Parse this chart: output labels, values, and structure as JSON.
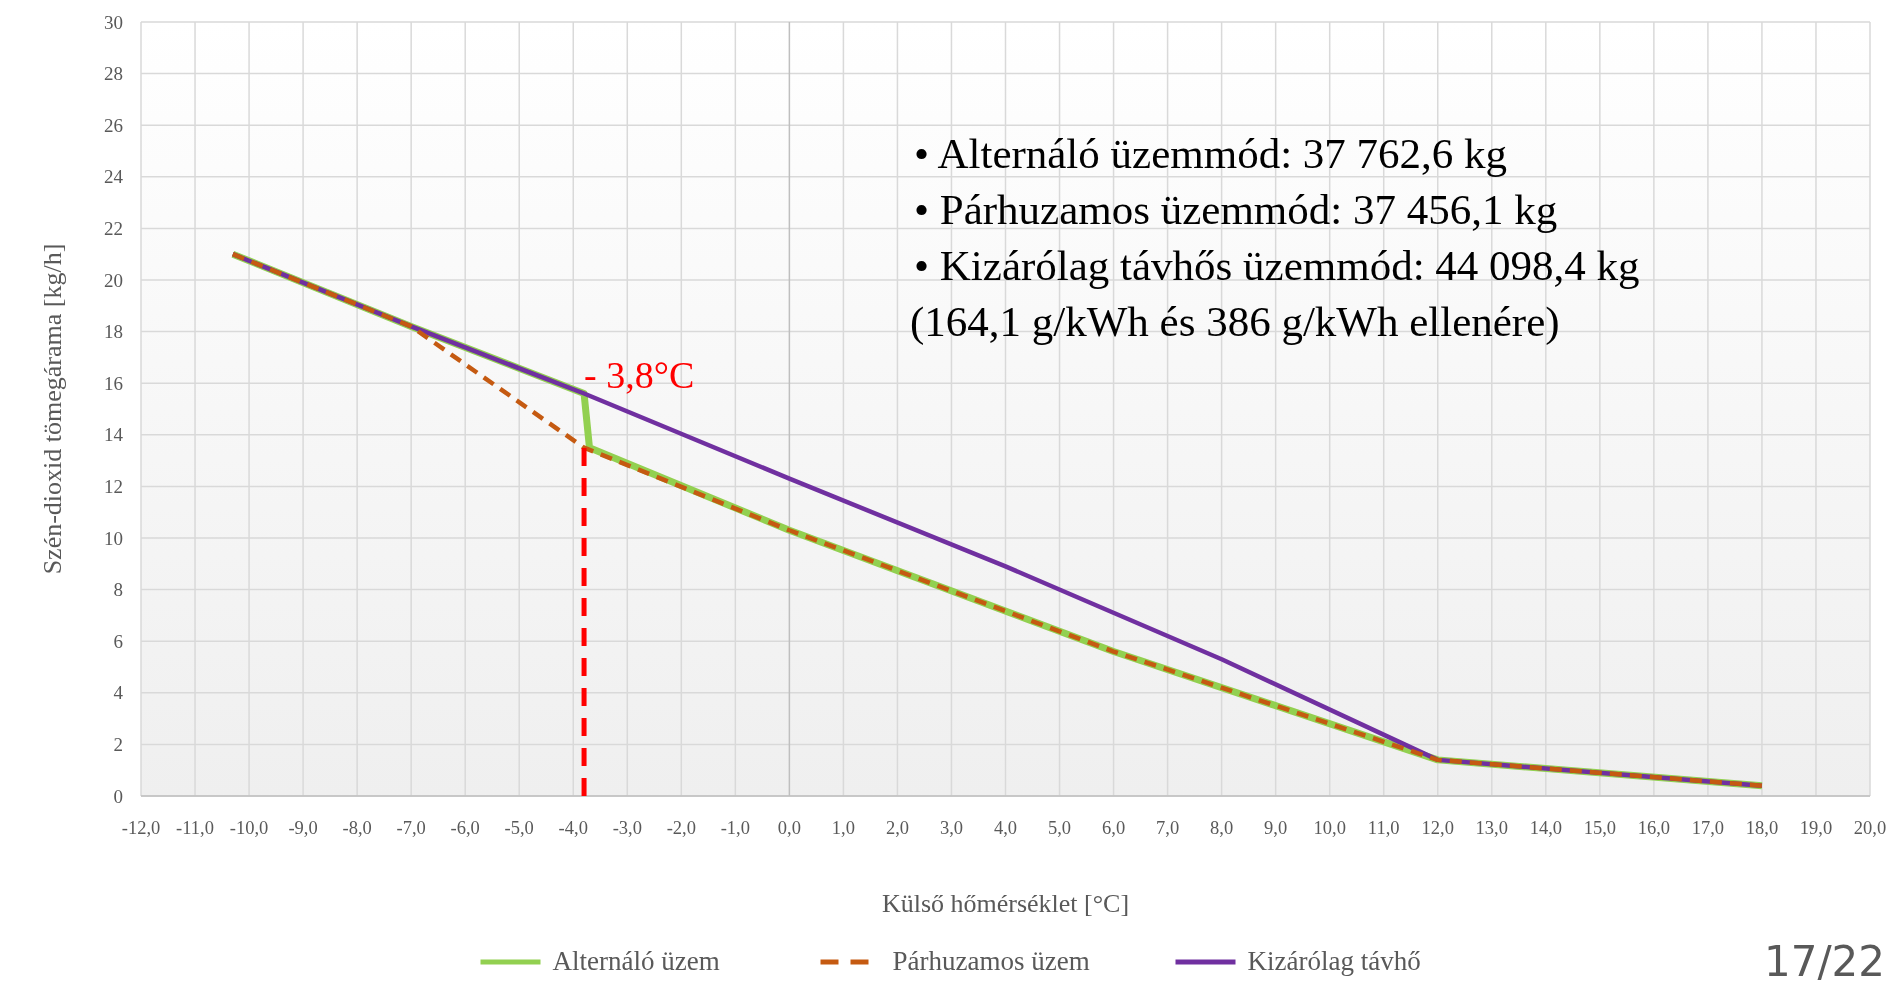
{
  "chart_data": {
    "type": "line",
    "xlabel": "Külső hőmérséklet [°C]",
    "ylabel": "Szén-dioxid tömegárama [kg/h]",
    "xlim": [
      -12,
      20
    ],
    "xticks": [
      {
        "value": -12,
        "label": "-12,0"
      },
      {
        "value": -11,
        "label": "-11,0"
      },
      {
        "value": -10,
        "label": "-10,0"
      },
      {
        "value": -9,
        "label": "-9,0"
      },
      {
        "value": -8,
        "label": "-8,0"
      },
      {
        "value": -7,
        "label": "-7,0"
      },
      {
        "value": -6,
        "label": "-6,0"
      },
      {
        "value": -5,
        "label": "-5,0"
      },
      {
        "value": -4,
        "label": "-4,0"
      },
      {
        "value": -3,
        "label": "-3,0"
      },
      {
        "value": -2,
        "label": "-2,0"
      },
      {
        "value": -1,
        "label": "-1,0"
      },
      {
        "value": 0,
        "label": "0,0"
      },
      {
        "value": 1,
        "label": "1,0"
      },
      {
        "value": 2,
        "label": "2,0"
      },
      {
        "value": 3,
        "label": "3,0"
      },
      {
        "value": 4,
        "label": "4,0"
      },
      {
        "value": 5,
        "label": "5,0"
      },
      {
        "value": 6,
        "label": "6,0"
      },
      {
        "value": 7,
        "label": "7,0"
      },
      {
        "value": 8,
        "label": "8,0"
      },
      {
        "value": 9,
        "label": "9,0"
      },
      {
        "value": 10,
        "label": "10,0"
      },
      {
        "value": 11,
        "label": "11,0"
      },
      {
        "value": 12,
        "label": "12,0"
      },
      {
        "value": 13,
        "label": "13,0"
      },
      {
        "value": 14,
        "label": "14,0"
      },
      {
        "value": 15,
        "label": "15,0"
      },
      {
        "value": 16,
        "label": "16,0"
      },
      {
        "value": 17,
        "label": "17,0"
      },
      {
        "value": 18,
        "label": "18,0"
      },
      {
        "value": 19,
        "label": "19,0"
      },
      {
        "value": 20,
        "label": "20,0"
      }
    ],
    "ylim": [
      0,
      30
    ],
    "yticks": [
      0,
      2,
      4,
      6,
      8,
      10,
      12,
      14,
      16,
      18,
      20,
      22,
      24,
      26,
      28,
      30
    ],
    "grid": true,
    "legend": "bottom",
    "series": [
      {
        "name": "Alternáló üzem",
        "color": "#92d050",
        "line_style": "solid",
        "x": [
          -10.3,
          -7,
          -3.8,
          -3.7,
          0,
          6,
          12,
          18
        ],
        "values": [
          21.0,
          18.2,
          15.6,
          13.5,
          10.3,
          5.6,
          1.4,
          0.4
        ]
      },
      {
        "name": "Párhuzamos üzem",
        "color": "#c55a11",
        "line_style": "dashed",
        "x": [
          -10.3,
          -7,
          -3.8,
          0,
          6,
          12,
          18
        ],
        "values": [
          21.0,
          18.2,
          13.5,
          10.3,
          5.6,
          1.4,
          0.4
        ]
      },
      {
        "name": "Kizárólag távhő",
        "color": "#7030a0",
        "line_style": "solid",
        "x": [
          -10.3,
          -7,
          -3.8,
          0,
          4,
          8,
          12,
          18
        ],
        "values": [
          21.0,
          18.2,
          15.6,
          12.3,
          8.9,
          5.3,
          1.4,
          0.4
        ]
      }
    ],
    "ref_lines": [
      {
        "axis": "x",
        "value": -3.8,
        "color": "#ff0000",
        "line_style": "dashed"
      }
    ],
    "annotations": [
      {
        "text": "- 3,8°C",
        "x": -3.8,
        "y": 15.8
      },
      "• Alternáló üzemmód: 37 762,6 kg",
      "• Párhuzamos üzemmód: 37 456,1 kg",
      "• Kizárólag távhős üzemmód: 44 098,4 kg",
      "(164,1 g/kWh és 386 g/kWh ellenére)",
      "17/22"
    ]
  }
}
